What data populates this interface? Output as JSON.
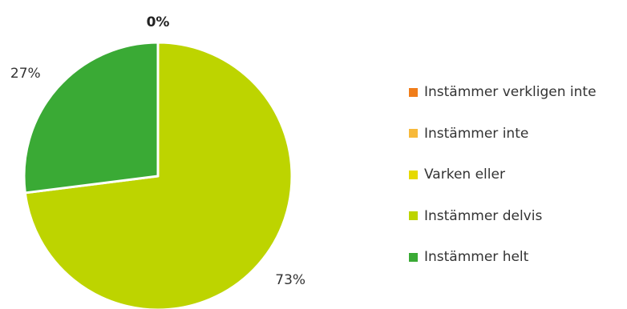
{
  "chart_data": {
    "type": "pie",
    "title": "",
    "categories": [
      "Instämmer verkligen inte",
      "Instämmer inte",
      "Varken eller",
      "Instämmer delvis",
      "Instämmer helt"
    ],
    "values": [
      0,
      0,
      0,
      73,
      27
    ],
    "labels": [
      "0%",
      "",
      "",
      "73%",
      "27%"
    ],
    "colors": [
      "#f07d1a",
      "#f7b93a",
      "#e6d900",
      "#bdd400",
      "#3aaa35"
    ],
    "legend_position": "right"
  }
}
